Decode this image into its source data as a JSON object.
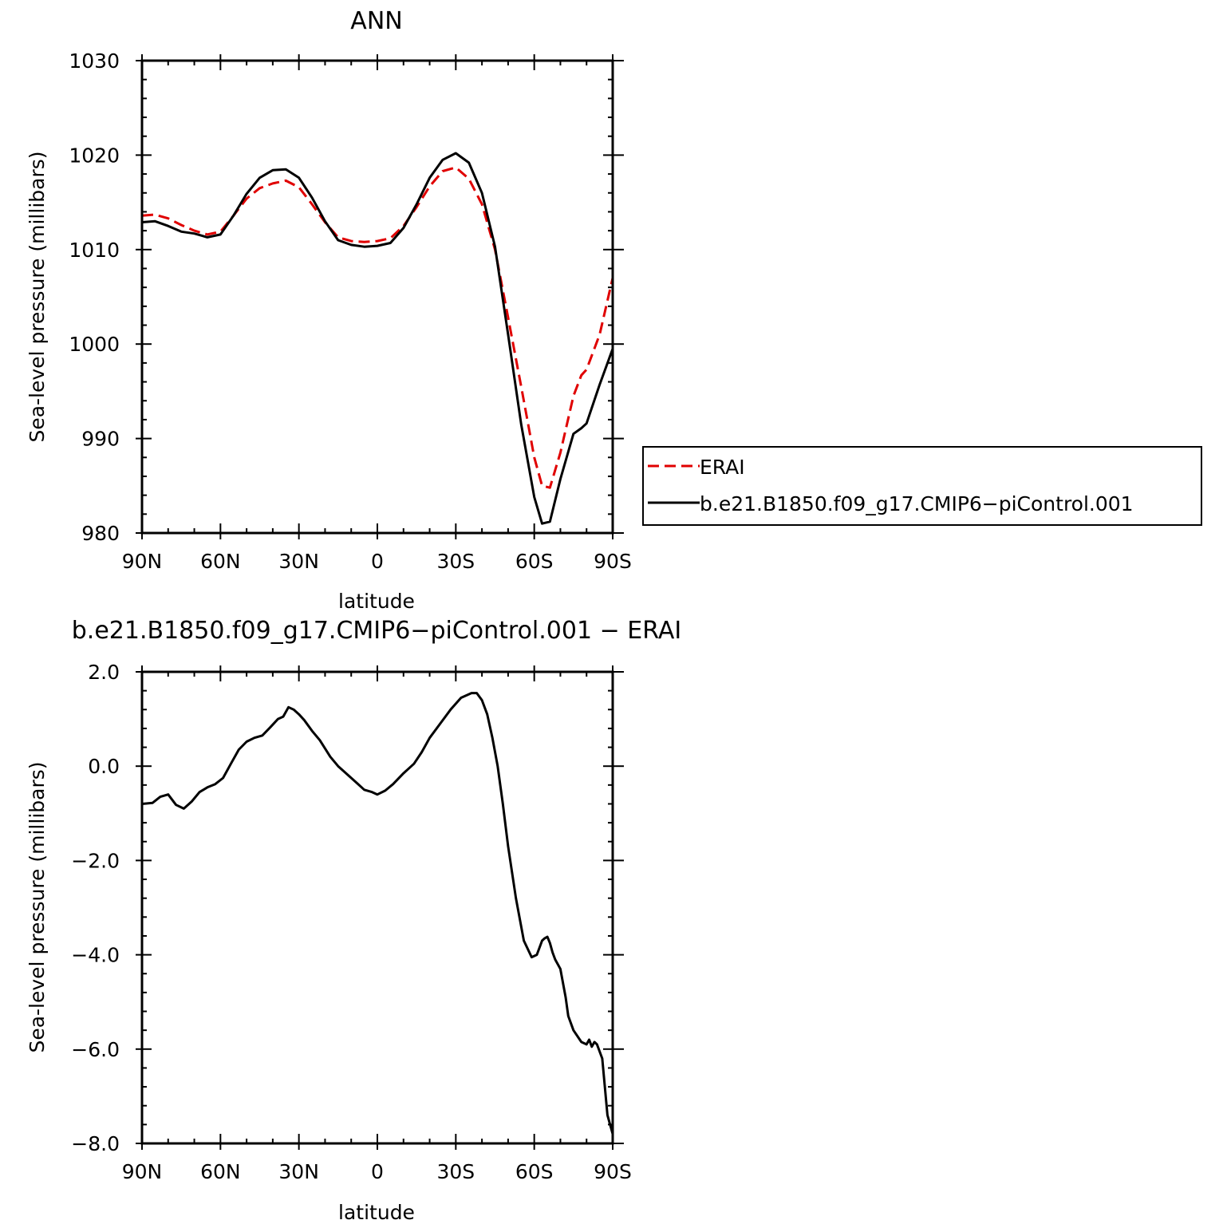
{
  "chart_data": [
    {
      "type": "line",
      "title": "ANN",
      "xlabel": "latitude",
      "ylabel": "Sea-level pressure (millibars)",
      "xlim": [
        90,
        -90
      ],
      "ylim": [
        980,
        1030
      ],
      "xticks": [
        90,
        60,
        30,
        0,
        -30,
        -60,
        -90
      ],
      "xtick_labels": [
        "90N",
        "60N",
        "30N",
        "0",
        "30S",
        "60S",
        "90S"
      ],
      "yticks": [
        980,
        990,
        1000,
        1010,
        1020,
        1030
      ],
      "ytick_labels": [
        "980",
        "990",
        "1000",
        "1010",
        "1020",
        "1030"
      ],
      "legend_position": "right",
      "series": [
        {
          "name": "ERAI",
          "color": "#e00000",
          "dash": "dashed",
          "x": [
            90,
            85,
            80,
            75,
            70,
            65,
            60,
            55,
            50,
            45,
            40,
            35,
            30,
            25,
            20,
            15,
            10,
            5,
            0,
            -5,
            -10,
            -15,
            -20,
            -25,
            -30,
            -35,
            -40,
            -45,
            -50,
            -55,
            -60,
            -63,
            -66,
            -70,
            -75,
            -78,
            -80,
            -85,
            -90
          ],
          "y": [
            1013.6,
            1013.7,
            1013.3,
            1012.6,
            1012.0,
            1011.6,
            1011.9,
            1013.6,
            1015.4,
            1016.5,
            1017.0,
            1017.3,
            1016.6,
            1014.8,
            1012.9,
            1011.3,
            1010.9,
            1010.8,
            1010.9,
            1011.2,
            1012.5,
            1014.5,
            1016.7,
            1018.3,
            1018.7,
            1017.5,
            1014.8,
            1010.0,
            1002.8,
            995.5,
            988.0,
            985.0,
            984.8,
            988.5,
            994.5,
            996.7,
            997.3,
            1001.0,
            1007.0
          ]
        },
        {
          "name": "b.e21.B1850.f09_g17.CMIP6−piControl.001",
          "color": "#000000",
          "dash": "solid",
          "x": [
            90,
            85,
            80,
            75,
            70,
            65,
            60,
            55,
            50,
            45,
            40,
            35,
            30,
            25,
            20,
            15,
            10,
            5,
            0,
            -5,
            -10,
            -15,
            -20,
            -25,
            -30,
            -35,
            -40,
            -45,
            -50,
            -55,
            -60,
            -63,
            -66,
            -70,
            -75,
            -78,
            -80,
            -85,
            -90
          ],
          "y": [
            1012.9,
            1013.0,
            1012.5,
            1011.9,
            1011.7,
            1011.3,
            1011.6,
            1013.6,
            1015.9,
            1017.6,
            1018.4,
            1018.5,
            1017.6,
            1015.5,
            1013.0,
            1011.0,
            1010.5,
            1010.3,
            1010.4,
            1010.7,
            1012.3,
            1014.8,
            1017.6,
            1019.5,
            1020.2,
            1019.2,
            1016.0,
            1010.3,
            1001.0,
            991.5,
            983.8,
            981.0,
            981.2,
            985.7,
            990.5,
            991.1,
            991.6,
            995.7,
            999.5
          ]
        }
      ]
    },
    {
      "type": "line",
      "title": "b.e21.B1850.f09_g17.CMIP6−piControl.001  −  ERAI",
      "xlabel": "latitude",
      "ylabel": "Sea-level pressure (millibars)",
      "xlim": [
        90,
        -90
      ],
      "ylim": [
        -8,
        2
      ],
      "xticks": [
        90,
        60,
        30,
        0,
        -30,
        -60,
        -90
      ],
      "xtick_labels": [
        "90N",
        "60N",
        "30N",
        "0",
        "30S",
        "60S",
        "90S"
      ],
      "yticks": [
        -8,
        -6,
        -4,
        -2,
        0,
        2
      ],
      "ytick_labels": [
        "−8.0",
        "−6.0",
        "−4.0",
        "−2.0",
        "0.0",
        "2.0"
      ],
      "series": [
        {
          "color": "#000000",
          "dash": "solid",
          "x": [
            90,
            86,
            83,
            80,
            77,
            74,
            71,
            68,
            65,
            62,
            59,
            56,
            53,
            50,
            47,
            44,
            41,
            38,
            36,
            34,
            32,
            30,
            28,
            25,
            22,
            18,
            15,
            12,
            8,
            5,
            2,
            0,
            -3,
            -6,
            -10,
            -14,
            -17,
            -20,
            -24,
            -28,
            -32,
            -36,
            -38,
            -40,
            -42,
            -44,
            -46,
            -48,
            -50,
            -53,
            -56,
            -59,
            -61,
            -63,
            -64,
            -65,
            -66,
            -67,
            -68,
            -70,
            -72,
            -73,
            -75,
            -78,
            -80,
            -81,
            -82,
            -83,
            -84,
            -86,
            -88,
            -90
          ],
          "y": [
            -0.8,
            -0.78,
            -0.65,
            -0.6,
            -0.82,
            -0.9,
            -0.75,
            -0.55,
            -0.45,
            -0.38,
            -0.25,
            0.05,
            0.35,
            0.52,
            0.6,
            0.65,
            0.82,
            1.0,
            1.05,
            1.25,
            1.2,
            1.1,
            0.98,
            0.75,
            0.55,
            0.2,
            0.0,
            -0.15,
            -0.35,
            -0.5,
            -0.55,
            -0.6,
            -0.52,
            -0.38,
            -0.15,
            0.05,
            0.3,
            0.6,
            0.9,
            1.2,
            1.45,
            1.55,
            1.55,
            1.4,
            1.1,
            0.6,
            0.0,
            -0.8,
            -1.7,
            -2.8,
            -3.7,
            -4.05,
            -4.0,
            -3.7,
            -3.65,
            -3.62,
            -3.75,
            -3.95,
            -4.1,
            -4.3,
            -4.9,
            -5.3,
            -5.6,
            -5.85,
            -5.9,
            -5.8,
            -5.95,
            -5.85,
            -5.9,
            -6.2,
            -7.4,
            -7.8
          ]
        }
      ]
    }
  ]
}
